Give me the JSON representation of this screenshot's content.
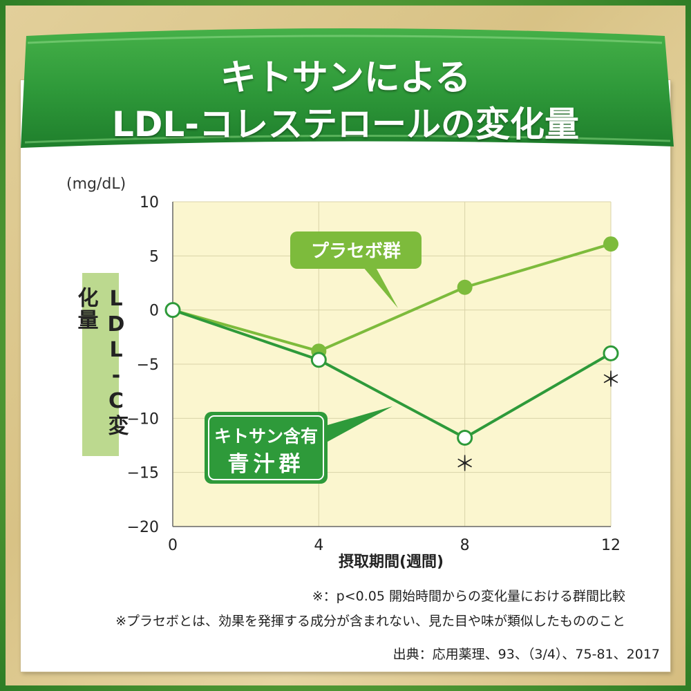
{
  "title_line1": "キトサンによる",
  "title_line2": "LDL-コレステロールの変化量",
  "colors": {
    "placebo": "#7dbb3c",
    "kitosan": "#2e9a3a",
    "plot_bg": "#fbf6cf",
    "banner": "#2f9a3a",
    "ylabel_bg": "#bcd98f"
  },
  "chart_data": {
    "type": "line",
    "ylabel": "LDL-C変化量",
    "yunit": "(mg/dL)",
    "xlabel": "摂取期間(週間)",
    "x": [
      0,
      4,
      8,
      12
    ],
    "xlim": [
      0,
      12
    ],
    "ylim": [
      -20,
      10
    ],
    "yticks": [
      10,
      5,
      0,
      -5,
      -10,
      -15,
      -20
    ],
    "ytick_labels": [
      "10",
      "5",
      "0",
      "−5",
      "−10",
      "−15",
      "−20"
    ],
    "xtick_labels": [
      "0",
      "4",
      "8",
      "12"
    ],
    "grid": true,
    "series": [
      {
        "name": "プラセボ群",
        "values": [
          0,
          -3.8,
          2.1,
          6.1
        ],
        "marker": "filled"
      },
      {
        "name": "キトサン含有青汁群",
        "name_line1": "キトサン含有",
        "name_line2": "青汁群",
        "values": [
          0,
          -4.6,
          -11.8,
          -4.0
        ],
        "marker": "open",
        "significant": [
          false,
          false,
          true,
          true
        ]
      }
    ],
    "significance_mark": "＊"
  },
  "notes": {
    "significance": "※：p<0.05  開始時間からの変化量における群間比較",
    "placebo_def": "※プラセボとは、効果を発揮する成分が含まれない、見た目や味が類似したもののこと",
    "source": "出典：応用薬理、93、（3/4）、75-81、2017"
  }
}
